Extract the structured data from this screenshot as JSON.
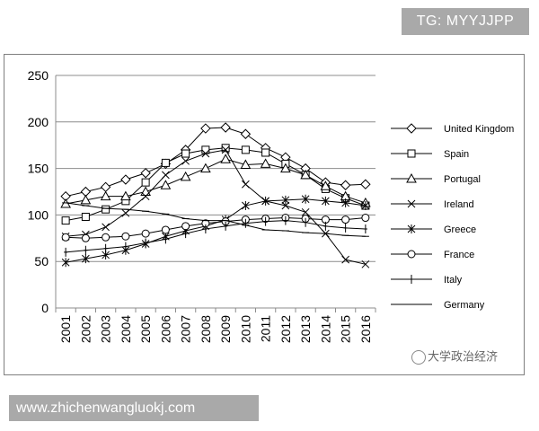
{
  "badge": {
    "text": "TG: MYYJJPP"
  },
  "footer": {
    "url": "www.zhichenwangluokj.com"
  },
  "watermark": {
    "text": "大学政治经济"
  },
  "chart_data": {
    "type": "line",
    "title": "",
    "xlabel": "",
    "ylabel": "",
    "ylim": [
      0,
      250
    ],
    "yticks": [
      0,
      50,
      100,
      150,
      200,
      250
    ],
    "grid": true,
    "legend_position": "right",
    "categories": [
      "2001",
      "2002",
      "2003",
      "2004",
      "2005",
      "2006",
      "2007",
      "2008",
      "2009",
      "2010",
      "2011",
      "2012",
      "2013",
      "2014",
      "2015",
      "2016"
    ],
    "series": [
      {
        "name": "United Kingdom",
        "marker": "diamond",
        "values": [
          120,
          125,
          130,
          138,
          145,
          155,
          170,
          193,
          194,
          187,
          172,
          162,
          150,
          135,
          132,
          133
        ]
      },
      {
        "name": "Spain",
        "marker": "square",
        "values": [
          94,
          98,
          106,
          115,
          135,
          156,
          166,
          170,
          172,
          170,
          167,
          155,
          143,
          128,
          118,
          110
        ]
      },
      {
        "name": "Portugal",
        "marker": "triangle",
        "values": [
          112,
          116,
          120,
          120,
          125,
          132,
          141,
          150,
          160,
          154,
          155,
          150,
          143,
          131,
          120,
          113
        ]
      },
      {
        "name": "Ireland",
        "marker": "x",
        "values": [
          77,
          79,
          87,
          102,
          120,
          143,
          158,
          166,
          170,
          133,
          115,
          110,
          103,
          80,
          52,
          47
        ]
      },
      {
        "name": "Greece",
        "marker": "asterisk",
        "values": [
          49,
          53,
          57,
          62,
          69,
          77,
          83,
          88,
          95,
          110,
          115,
          116,
          117,
          115,
          113,
          110
        ]
      },
      {
        "name": "France",
        "marker": "circle",
        "values": [
          76,
          75,
          76,
          77,
          80,
          84,
          88,
          91,
          93,
          95,
          96,
          97,
          96,
          95,
          95,
          97
        ]
      },
      {
        "name": "Italy",
        "marker": "plus",
        "values": [
          60,
          62,
          64,
          66,
          70,
          74,
          80,
          85,
          88,
          91,
          93,
          94,
          92,
          88,
          86,
          85
        ]
      },
      {
        "name": "Germany",
        "marker": "dash",
        "values": [
          113,
          110,
          107,
          106,
          104,
          101,
          96,
          94,
          94,
          89,
          84,
          83,
          81,
          80,
          78,
          77
        ]
      }
    ]
  }
}
